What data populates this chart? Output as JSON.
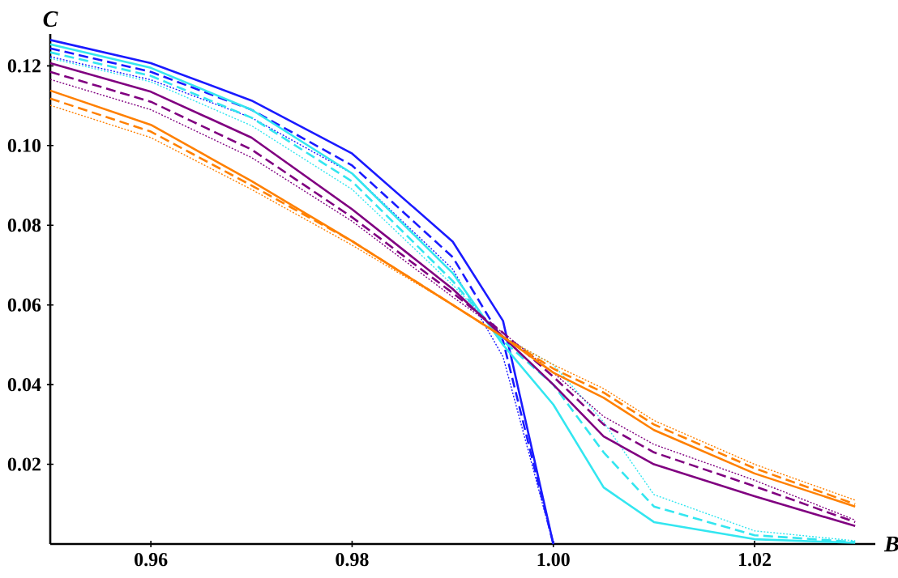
{
  "chart_data": {
    "type": "line",
    "xlabel": "B",
    "ylabel": "C",
    "x": [
      0.95,
      0.96,
      0.97,
      0.98,
      0.99,
      0.995,
      1.0,
      1.005,
      1.01,
      1.02,
      1.03
    ],
    "xlim": [
      0.95,
      1.032
    ],
    "ylim": [
      0,
      0.128
    ],
    "xticks": [
      0.96,
      0.98,
      {
        "value": 1.0,
        "label": "1.00"
      },
      1.02
    ],
    "yticks": [
      0.02,
      0.04,
      0.06,
      0.08,
      {
        "value": 0.1,
        "label": "0.10"
      },
      0.12
    ],
    "series": [
      {
        "color": "#1a1aff",
        "line_style": "solid",
        "values": [
          0.1265,
          0.1207,
          0.1113,
          0.098,
          0.0759,
          0.056,
          0,
          null,
          null,
          null,
          null
        ]
      },
      {
        "color": "#1a1aff",
        "line_style": "dashed",
        "values": [
          0.1244,
          0.1185,
          0.109,
          0.095,
          0.072,
          0.051,
          0,
          null,
          null,
          null,
          null
        ]
      },
      {
        "color": "#1a1aff",
        "line_style": "dotted",
        "values": [
          0.1223,
          0.1165,
          0.107,
          0.093,
          0.069,
          0.047,
          0,
          null,
          null,
          null,
          null
        ]
      },
      {
        "color": "#33e6f0",
        "line_style": "solid",
        "values": [
          0.1254,
          0.1195,
          0.109,
          0.093,
          0.068,
          0.05,
          0.035,
          0.0142,
          0.0055,
          0.0012,
          0.0003
        ]
      },
      {
        "color": "#33e6f0",
        "line_style": "dashed",
        "values": [
          0.1234,
          0.1175,
          0.107,
          0.091,
          0.066,
          0.051,
          0.04,
          0.023,
          0.0094,
          0.0022,
          0.0005
        ]
      },
      {
        "color": "#33e6f0",
        "line_style": "dotted",
        "values": [
          0.1219,
          0.116,
          0.105,
          0.089,
          0.065,
          0.052,
          0.045,
          0.0306,
          0.0124,
          0.0033,
          0.0008
        ]
      },
      {
        "color": "#800080",
        "line_style": "solid",
        "values": [
          0.1207,
          0.1135,
          0.102,
          0.084,
          0.064,
          0.052,
          0.04,
          0.027,
          0.02,
          0.012,
          0.0045
        ]
      },
      {
        "color": "#800080",
        "line_style": "dashed",
        "values": [
          0.1185,
          0.111,
          0.099,
          0.082,
          0.063,
          0.053,
          0.042,
          0.03,
          0.023,
          0.0145,
          0.0055
        ]
      },
      {
        "color": "#800080",
        "line_style": "dotted",
        "values": [
          0.1166,
          0.109,
          0.097,
          0.081,
          0.062,
          0.053,
          0.043,
          0.032,
          0.025,
          0.016,
          0.006
        ]
      },
      {
        "color": "#ff8000",
        "line_style": "solid",
        "values": [
          0.1138,
          0.1052,
          0.0911,
          0.076,
          0.06,
          0.052,
          0.043,
          0.0367,
          0.0286,
          0.0177,
          0.0094
        ]
      },
      {
        "color": "#ff8000",
        "line_style": "dashed",
        "values": [
          0.1118,
          0.1035,
          0.09,
          0.076,
          0.06,
          0.052,
          0.044,
          0.038,
          0.03,
          0.019,
          0.01
        ]
      },
      {
        "color": "#ff8000",
        "line_style": "dotted",
        "values": [
          0.1101,
          0.102,
          0.089,
          0.075,
          0.06,
          0.052,
          0.045,
          0.039,
          0.031,
          0.02,
          0.011
        ]
      }
    ]
  }
}
